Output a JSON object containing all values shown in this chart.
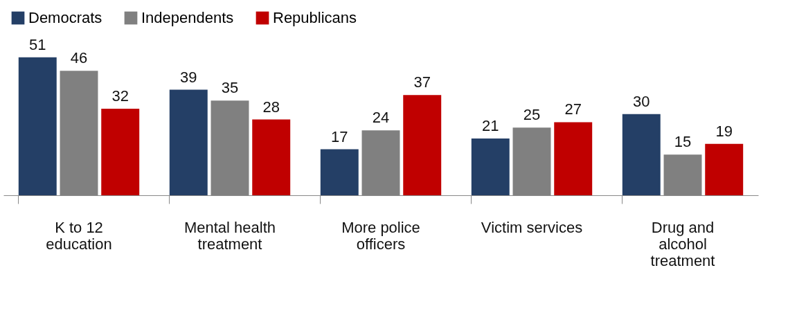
{
  "chart_data": {
    "type": "bar",
    "categories": [
      "K to 12 education",
      "Mental health treatment",
      "More police officers",
      "Victim services",
      "Drug and alcohol treatment"
    ],
    "series": [
      {
        "name": "Democrats",
        "color": "#243f66",
        "values": [
          51,
          39,
          17,
          21,
          30
        ]
      },
      {
        "name": "Independents",
        "color": "#808080",
        "values": [
          46,
          35,
          24,
          25,
          15
        ]
      },
      {
        "name": "Republicans",
        "color": "#c00000",
        "values": [
          32,
          28,
          37,
          27,
          19
        ]
      }
    ],
    "data_labels": true,
    "legend": "top",
    "grid": false
  }
}
